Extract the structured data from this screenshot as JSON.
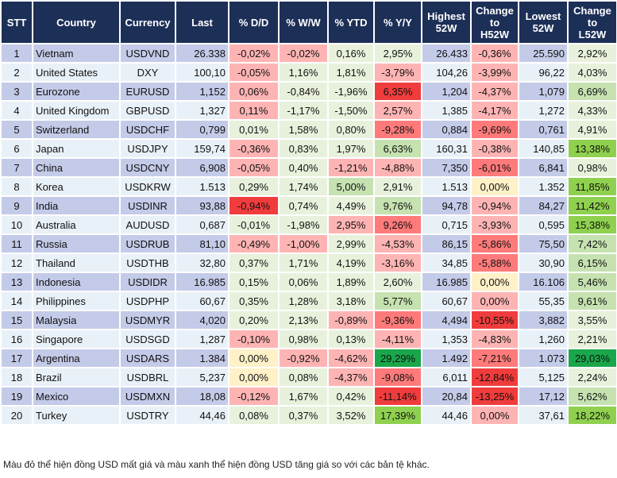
{
  "headers": [
    "STT",
    "Country",
    "Currency",
    "Last",
    "% D/D",
    "% W/W",
    "% YTD",
    "% Y/Y",
    "Highest\n52W",
    "Change\nto\nH52W",
    "Lowest\n52W",
    "Change\nto\nL52W"
  ],
  "colors": {
    "header": "#1c2f57",
    "row_odd": "#c4cbe8",
    "row_even": "#e9f1f8",
    "n": "#e8f1dc",
    "r1": "#ffb4b4",
    "r2": "#ff7a7a",
    "r3": "#f03c3c",
    "g1": "#c5e2b0",
    "g2": "#8fd14f",
    "g3": "#1aa64a",
    "y": "#fff1c8"
  },
  "rows": [
    {
      "stt": "1",
      "country": "Vietnam",
      "currency": "USDVND",
      "last": "26.338",
      "dd": "-0,02%",
      "ww": "-0,02%",
      "ytd": "0,16%",
      "yy": "2,95%",
      "high": "26.433",
      "ch": "-0,36%",
      "low": "25.590",
      "cl": "2,92%",
      "shade": [
        "r1",
        "r1",
        "n",
        "n",
        "r1",
        "n"
      ]
    },
    {
      "stt": "2",
      "country": "United States",
      "currency": "DXY",
      "last": "100,10",
      "dd": "-0,05%",
      "ww": "1,16%",
      "ytd": "1,81%",
      "yy": "-3,79%",
      "high": "104,26",
      "ch": "-3,99%",
      "low": "96,22",
      "cl": "4,03%",
      "shade": [
        "r1",
        "n",
        "n",
        "r1",
        "r1",
        "n"
      ]
    },
    {
      "stt": "3",
      "country": "Eurozone",
      "currency": "EURUSD",
      "last": "1,152",
      "dd": "0,06%",
      "ww": "-0,84%",
      "ytd": "-1,96%",
      "yy": "6,35%",
      "high": "1,204",
      "ch": "-4,37%",
      "low": "1,079",
      "cl": "6,69%",
      "shade": [
        "r1",
        "n",
        "n",
        "r3",
        "r1",
        "g1"
      ]
    },
    {
      "stt": "4",
      "country": "United Kingdom",
      "currency": "GBPUSD",
      "last": "1,327",
      "dd": "0,11%",
      "ww": "-1,17%",
      "ytd": "-1,50%",
      "yy": "2,57%",
      "high": "1,385",
      "ch": "-4,17%",
      "low": "1,272",
      "cl": "4,33%",
      "shade": [
        "r1",
        "n",
        "n",
        "r1",
        "r1",
        "n"
      ]
    },
    {
      "stt": "5",
      "country": "Switzerland",
      "currency": "USDCHF",
      "last": "0,799",
      "dd": "0,01%",
      "ww": "1,58%",
      "ytd": "0,80%",
      "yy": "-9,28%",
      "high": "0,884",
      "ch": "-9,69%",
      "low": "0,761",
      "cl": "4,91%",
      "shade": [
        "n",
        "n",
        "n",
        "r2",
        "r2",
        "n"
      ]
    },
    {
      "stt": "6",
      "country": "Japan",
      "currency": "USDJPY",
      "last": "159,74",
      "dd": "-0,36%",
      "ww": "0,83%",
      "ytd": "1,97%",
      "yy": "6,63%",
      "high": "160,31",
      "ch": "-0,38%",
      "low": "140,85",
      "cl": "13,38%",
      "shade": [
        "r1",
        "n",
        "n",
        "g1",
        "r1",
        "g2"
      ]
    },
    {
      "stt": "7",
      "country": "China",
      "currency": "USDCNY",
      "last": "6,908",
      "dd": "-0,05%",
      "ww": "0,40%",
      "ytd": "-1,21%",
      "yy": "-4,88%",
      "high": "7,350",
      "ch": "-6,01%",
      "low": "6,841",
      "cl": "0,98%",
      "shade": [
        "r1",
        "n",
        "r1",
        "r1",
        "r2",
        "n"
      ]
    },
    {
      "stt": "8",
      "country": "Korea",
      "currency": "USDKRW",
      "last": "1.513",
      "dd": "0,29%",
      "ww": "1,74%",
      "ytd": "5,00%",
      "yy": "2,91%",
      "high": "1.513",
      "ch": "0,00%",
      "low": "1.352",
      "cl": "11,85%",
      "shade": [
        "n",
        "n",
        "g1",
        "n",
        "y",
        "g2"
      ]
    },
    {
      "stt": "9",
      "country": "India",
      "currency": "USDINR",
      "last": "93,88",
      "dd": "-0,94%",
      "ww": "0,74%",
      "ytd": "4,49%",
      "yy": "9,76%",
      "high": "94,78",
      "ch": "-0,94%",
      "low": "84,27",
      "cl": "11,42%",
      "shade": [
        "r3",
        "n",
        "n",
        "g1",
        "r1",
        "g2"
      ]
    },
    {
      "stt": "10",
      "country": "Australia",
      "currency": "AUDUSD",
      "last": "0,687",
      "dd": "-0,01%",
      "ww": "-1,98%",
      "ytd": "2,95%",
      "yy": "9,26%",
      "high": "0,715",
      "ch": "-3,93%",
      "low": "0,595",
      "cl": "15,38%",
      "shade": [
        "n",
        "n",
        "r1",
        "r2",
        "r1",
        "g2"
      ]
    },
    {
      "stt": "11",
      "country": "Russia",
      "currency": "USDRUB",
      "last": "81,10",
      "dd": "-0,49%",
      "ww": "-1,00%",
      "ytd": "2,99%",
      "yy": "-4,53%",
      "high": "86,15",
      "ch": "-5,86%",
      "low": "75,50",
      "cl": "7,42%",
      "shade": [
        "r1",
        "r1",
        "n",
        "r1",
        "r2",
        "g1"
      ]
    },
    {
      "stt": "12",
      "country": "Thailand",
      "currency": "USDTHB",
      "last": "32,80",
      "dd": "0,37%",
      "ww": "1,71%",
      "ytd": "4,19%",
      "yy": "-3,16%",
      "high": "34,85",
      "ch": "-5,88%",
      "low": "30,90",
      "cl": "6,15%",
      "shade": [
        "n",
        "n",
        "n",
        "r1",
        "r2",
        "g1"
      ]
    },
    {
      "stt": "13",
      "country": "Indonesia",
      "currency": "USDIDR",
      "last": "16.985",
      "dd": "0,15%",
      "ww": "0,06%",
      "ytd": "1,89%",
      "yy": "2,60%",
      "high": "16.985",
      "ch": "0,00%",
      "low": "16.106",
      "cl": "5,46%",
      "shade": [
        "n",
        "n",
        "n",
        "n",
        "y",
        "g1"
      ]
    },
    {
      "stt": "14",
      "country": "Philippines",
      "currency": "USDPHP",
      "last": "60,67",
      "dd": "0,35%",
      "ww": "1,28%",
      "ytd": "3,18%",
      "yy": "5,77%",
      "high": "60,67",
      "ch": "0,00%",
      "low": "55,35",
      "cl": "9,61%",
      "shade": [
        "n",
        "n",
        "n",
        "g1",
        "r1",
        "g1"
      ]
    },
    {
      "stt": "15",
      "country": "Malaysia",
      "currency": "USDMYR",
      "last": "4,020",
      "dd": "0,20%",
      "ww": "2,13%",
      "ytd": "-0,89%",
      "yy": "-9,36%",
      "high": "4,494",
      "ch": "-10,55%",
      "low": "3,882",
      "cl": "3,55%",
      "shade": [
        "n",
        "n",
        "r1",
        "r2",
        "r3",
        "n"
      ]
    },
    {
      "stt": "16",
      "country": "Singapore",
      "currency": "USDSGD",
      "last": "1,287",
      "dd": "-0,10%",
      "ww": "0,98%",
      "ytd": "0,13%",
      "yy": "-4,11%",
      "high": "1,353",
      "ch": "-4,83%",
      "low": "1,260",
      "cl": "2,21%",
      "shade": [
        "r1",
        "n",
        "n",
        "r1",
        "r1",
        "n"
      ]
    },
    {
      "stt": "17",
      "country": "Argentina",
      "currency": "USDARS",
      "last": "1.384",
      "dd": "0,00%",
      "ww": "-0,92%",
      "ytd": "-4,62%",
      "yy": "29,29%",
      "high": "1.492",
      "ch": "-7,21%",
      "low": "1.073",
      "cl": "29,03%",
      "shade": [
        "y",
        "r1",
        "r1",
        "g3",
        "r2",
        "g3"
      ]
    },
    {
      "stt": "18",
      "country": "Brazil",
      "currency": "USDBRL",
      "last": "5,237",
      "dd": "0,00%",
      "ww": "0,08%",
      "ytd": "-4,37%",
      "yy": "-9,08%",
      "high": "6,011",
      "ch": "-12,84%",
      "low": "5,125",
      "cl": "2,24%",
      "shade": [
        "y",
        "n",
        "r1",
        "r2",
        "r3",
        "n"
      ]
    },
    {
      "stt": "19",
      "country": "Mexico",
      "currency": "USDMXN",
      "last": "18,08",
      "dd": "-0,12%",
      "ww": "1,67%",
      "ytd": "0,42%",
      "yy": "-11,14%",
      "high": "20,84",
      "ch": "-13,25%",
      "low": "17,12",
      "cl": "5,62%",
      "shade": [
        "r1",
        "n",
        "n",
        "r3",
        "r3",
        "g1"
      ]
    },
    {
      "stt": "20",
      "country": "Turkey",
      "currency": "USDTRY",
      "last": "44,46",
      "dd": "0,08%",
      "ww": "0,37%",
      "ytd": "3,52%",
      "yy": "17,39%",
      "high": "44,46",
      "ch": "0,00%",
      "low": "37,61",
      "cl": "18,22%",
      "shade": [
        "n",
        "n",
        "n",
        "g2",
        "r1",
        "g2"
      ]
    }
  ],
  "note": "Màu đỏ thể hiện đồng USD mất giá và màu xanh thể hiện đồng USD tăng giá so với các bản tệ khác."
}
